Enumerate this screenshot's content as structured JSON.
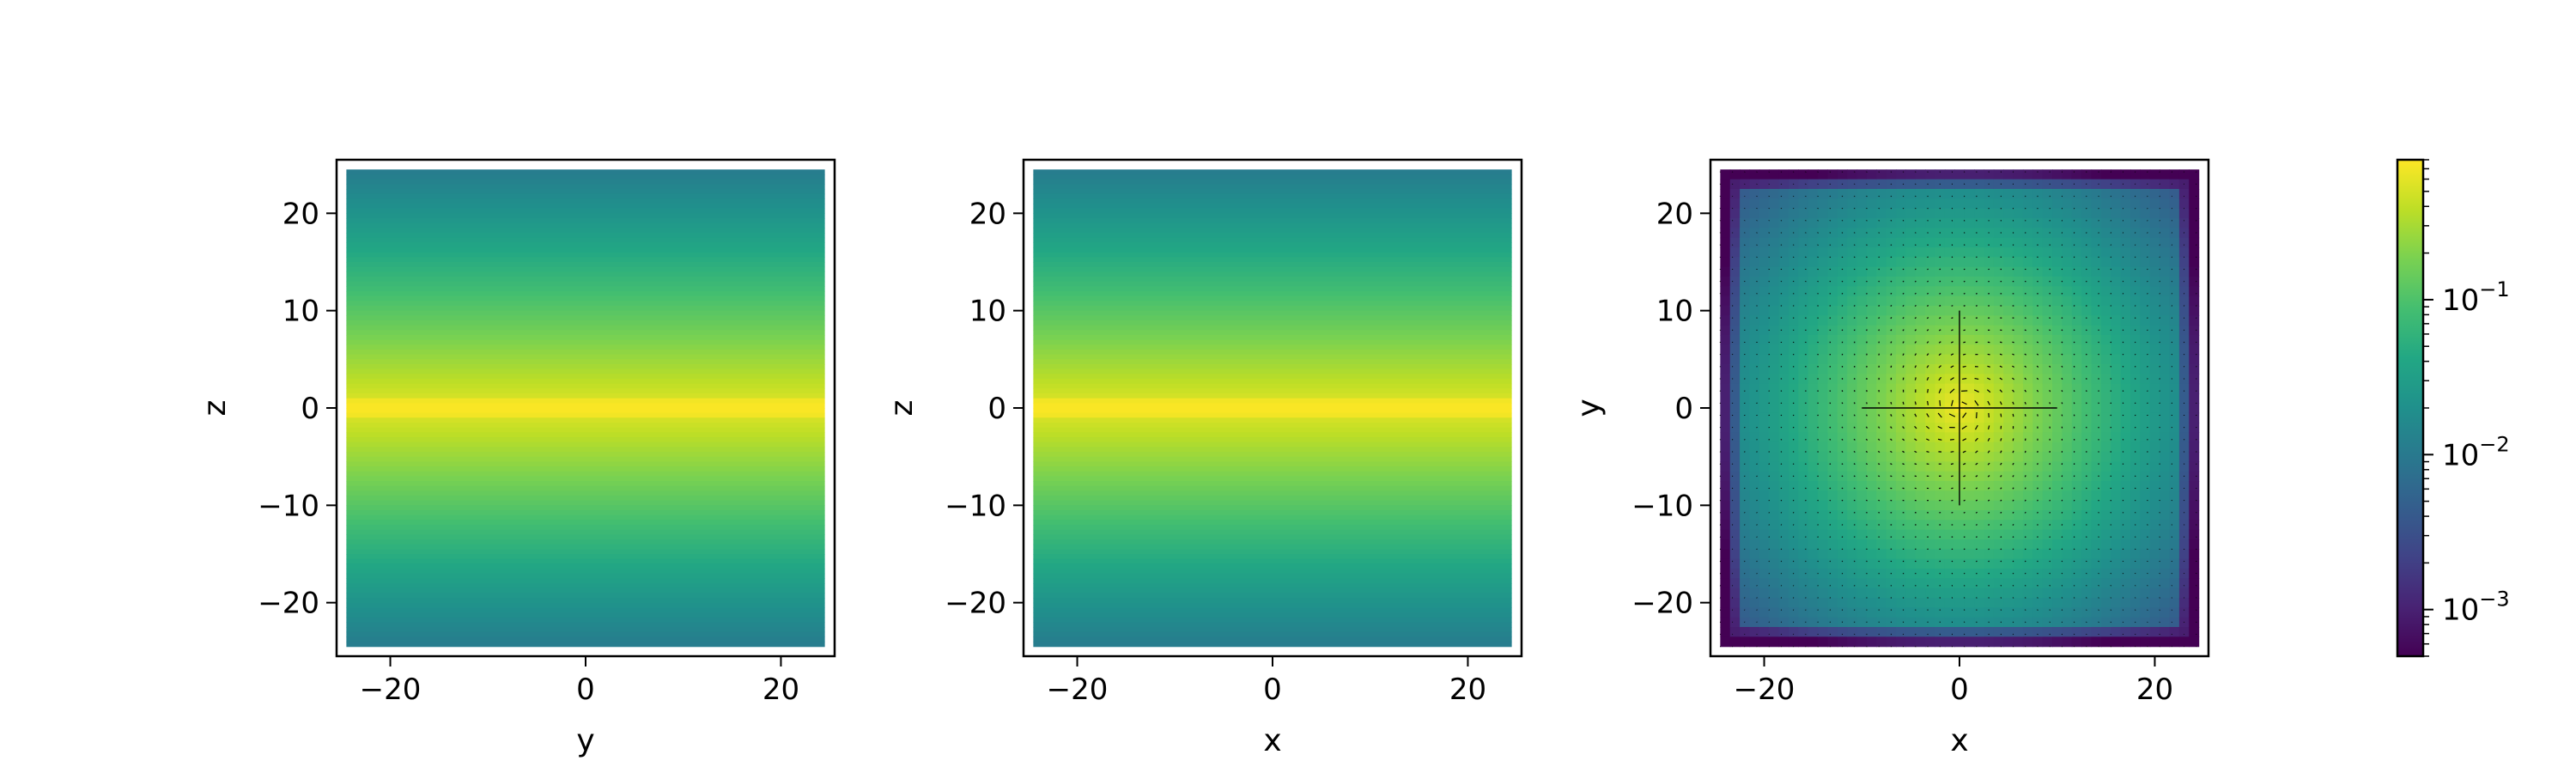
{
  "chart_data": [
    {
      "type": "heatmap",
      "panel": "left",
      "xlabel": "y",
      "ylabel": "z",
      "xlim": [
        -25.5,
        25.5
      ],
      "ylim": [
        -25.5,
        25.5
      ],
      "xticks": [
        -20,
        0,
        20
      ],
      "yticks": [
        -20,
        -10,
        0,
        10,
        20
      ],
      "xtick_labels": [
        "−20",
        "0",
        "20"
      ],
      "ytick_labels": [
        "−20",
        "−10",
        "0",
        "10",
        "20"
      ],
      "data_extent": [
        -24.5,
        24.5
      ],
      "profile": "varies along z only, peak at z = 0"
    },
    {
      "type": "heatmap",
      "panel": "middle",
      "xlabel": "x",
      "ylabel": "z",
      "xlim": [
        -25.5,
        25.5
      ],
      "ylim": [
        -25.5,
        25.5
      ],
      "xticks": [
        -20,
        0,
        20
      ],
      "yticks": [
        -20,
        -10,
        0,
        10,
        20
      ],
      "xtick_labels": [
        "−20",
        "0",
        "20"
      ],
      "ytick_labels": [
        "−20",
        "−10",
        "0",
        "10",
        "20"
      ],
      "data_extent": [
        -24.5,
        24.5
      ],
      "profile": "varies along z only, peak at z = 0"
    },
    {
      "type": "heatmap",
      "panel": "right",
      "xlabel": "x",
      "ylabel": "y",
      "xlim": [
        -25.5,
        25.5
      ],
      "ylim": [
        -25.5,
        25.5
      ],
      "xticks": [
        -20,
        0,
        20
      ],
      "yticks": [
        -20,
        -10,
        0,
        10,
        20
      ],
      "xtick_labels": [
        "−20",
        "0",
        "20"
      ],
      "ytick_labels": [
        "−20",
        "−10",
        "0",
        "10",
        "20"
      ],
      "data_extent": [
        -24.5,
        24.5
      ],
      "profile": "radial, peak at center, with overlaid quiver field (swirl)",
      "quiver": true
    }
  ],
  "colorbar": {
    "scale": "log",
    "colormap": "viridis",
    "range": [
      0.0005,
      0.8
    ],
    "ticks": [
      {
        "value": 0.1,
        "base": "10",
        "exp": "−1"
      },
      {
        "value": 0.01,
        "base": "10",
        "exp": "−2"
      },
      {
        "value": 0.001,
        "base": "10",
        "exp": "−3"
      }
    ]
  },
  "colors": {
    "viridis_low": "#440154",
    "viridis_mid": "#21918c",
    "viridis_high": "#fde725"
  }
}
